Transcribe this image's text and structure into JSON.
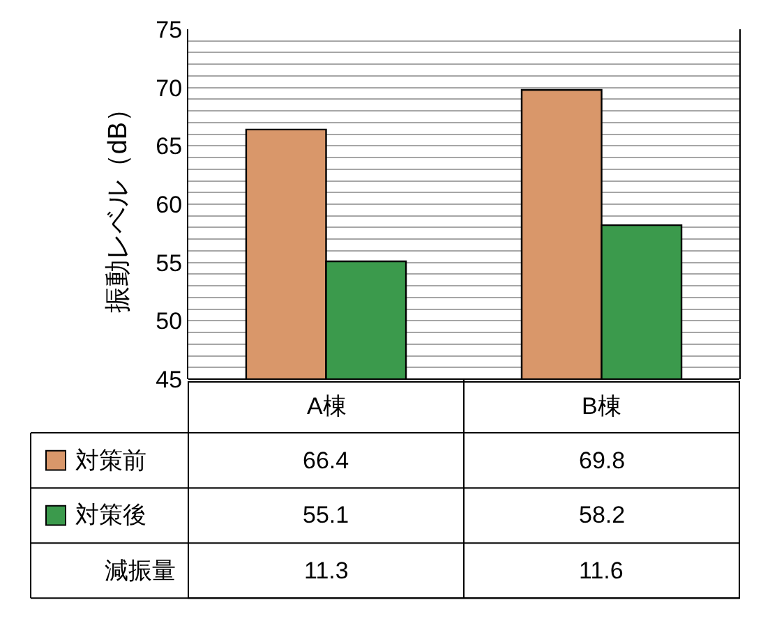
{
  "chart_data": {
    "type": "bar",
    "ylabel": "振動レベル（dB）",
    "categories": [
      "A棟",
      "B棟"
    ],
    "series": [
      {
        "name": "対策前",
        "color": "#d9976a",
        "values": [
          66.4,
          69.8
        ]
      },
      {
        "name": "対策後",
        "color": "#3b9a4c",
        "values": [
          55.1,
          58.2
        ]
      }
    ],
    "ylim": [
      45,
      75
    ],
    "yticks": [
      45,
      {
        "value": 46,
        "label": null
      },
      {
        "value": 47,
        "label": null
      },
      {
        "value": 48,
        "label": null
      },
      {
        "value": 49,
        "label": null
      },
      50,
      {
        "value": 51,
        "label": null
      },
      {
        "value": 52,
        "label": null
      },
      {
        "value": 53,
        "label": null
      },
      {
        "value": 54,
        "label": null
      },
      55,
      {
        "value": 56,
        "label": null
      },
      {
        "value": 57,
        "label": null
      },
      {
        "value": 58,
        "label": null
      },
      {
        "value": 59,
        "label": null
      },
      60,
      {
        "value": 61,
        "label": null
      },
      {
        "value": 62,
        "label": null
      },
      {
        "value": 63,
        "label": null
      },
      {
        "value": 64,
        "label": null
      },
      65,
      {
        "value": 66,
        "label": null
      },
      {
        "value": 67,
        "label": null
      },
      {
        "value": 68,
        "label": null
      },
      {
        "value": 69,
        "label": null
      },
      70,
      {
        "value": 71,
        "label": null
      },
      {
        "value": 72,
        "label": null
      },
      {
        "value": 73,
        "label": null
      },
      {
        "value": 74,
        "label": null
      },
      75
    ],
    "grid": "y",
    "legend": "bottom left",
    "data_labels": true,
    "annotations": [
      "減振量",
      "11.3",
      "11.6"
    ]
  }
}
